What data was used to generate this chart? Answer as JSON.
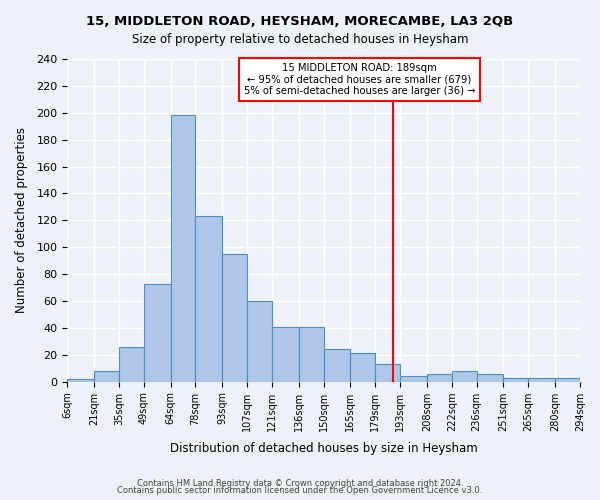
{
  "title1": "15, MIDDLETON ROAD, HEYSHAM, MORECAMBE, LA3 2QB",
  "title2": "Size of property relative to detached houses in Heysham",
  "xlabel": "Distribution of detached houses by size in Heysham",
  "ylabel": "Number of detached properties",
  "bar_labels": [
    "6sqm",
    "21sqm",
    "35sqm",
    "49sqm",
    "64sqm",
    "78sqm",
    "93sqm",
    "107sqm",
    "121sqm",
    "136sqm",
    "150sqm",
    "165sqm",
    "179sqm",
    "193sqm",
    "208sqm",
    "222sqm",
    "236sqm",
    "251sqm",
    "265sqm",
    "280sqm",
    "294sqm"
  ],
  "bar_values": [
    2,
    8,
    26,
    73,
    198,
    123,
    95,
    60,
    41,
    41,
    24,
    21,
    13,
    4,
    6,
    8,
    6,
    3,
    3,
    3
  ],
  "bar_color": "#aec6e8",
  "bar_edge_color": "#4f8fc0",
  "vline_x": 189,
  "vline_color": "red",
  "bin_edges": [
    6,
    21,
    35,
    49,
    64,
    78,
    93,
    107,
    121,
    136,
    150,
    165,
    179,
    193,
    208,
    222,
    236,
    251,
    265,
    280,
    294
  ],
  "annotation_title": "15 MIDDLETON ROAD: 189sqm",
  "annotation_line1": "← 95% of detached houses are smaller (679)",
  "annotation_line2": "5% of semi-detached houses are larger (36) →",
  "annotation_box_color": "#ffffff",
  "annotation_edge_color": "red",
  "ylim": [
    0,
    240
  ],
  "yticks": [
    0,
    20,
    40,
    60,
    80,
    100,
    120,
    140,
    160,
    180,
    200,
    220,
    240
  ],
  "footer1": "Contains HM Land Registry data © Crown copyright and database right 2024.",
  "footer2": "Contains public sector information licensed under the Open Government Licence v3.0.",
  "bg_color": "#eef2f8",
  "grid_color": "#ffffff"
}
